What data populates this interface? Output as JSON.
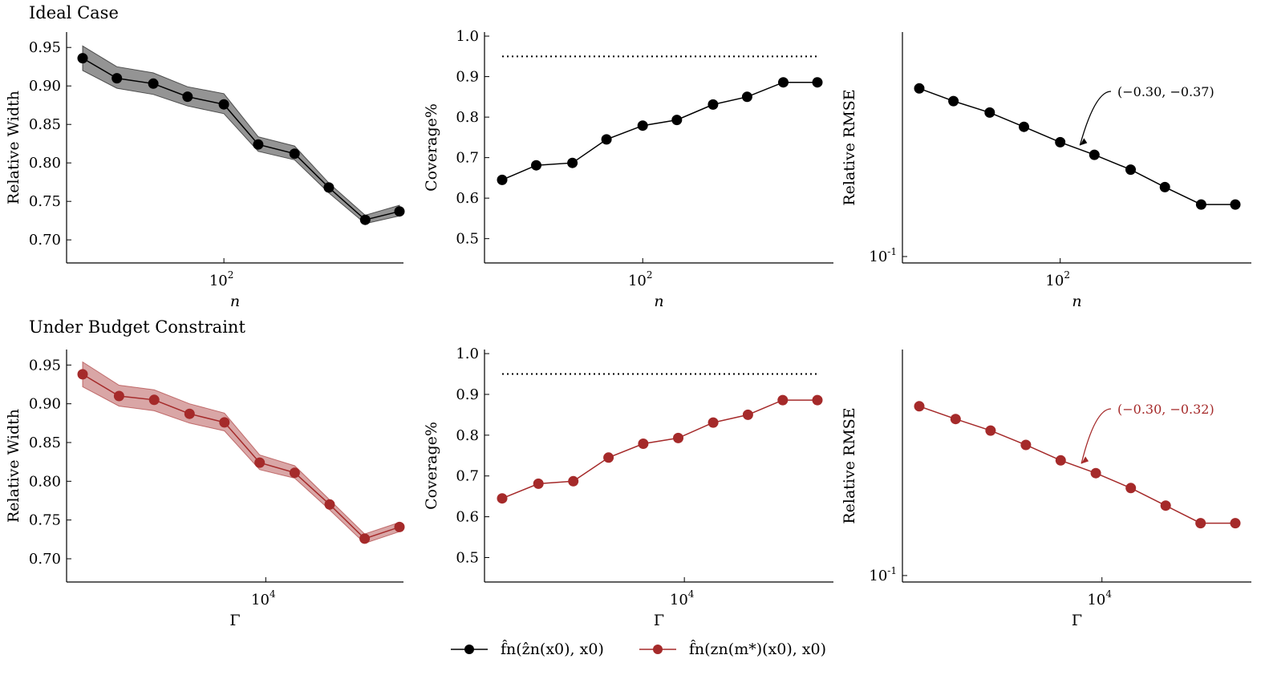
{
  "rows": [
    {
      "title": "Ideal Case",
      "xlabel": "n",
      "x_major_tick": "10",
      "x_major_exp": "2"
    },
    {
      "title": "Under Budget Constraint",
      "xlabel": "Γ",
      "x_major_tick": "10",
      "x_major_exp": "4"
    }
  ],
  "legend": [
    {
      "name": "f̂n(ẑn(x0), x0)",
      "color": "#000000"
    },
    {
      "name": "f̂n(zn(m*)(x0), x0)",
      "color": "#a52a2a"
    }
  ],
  "chart_data": [
    {
      "type": "line",
      "row": 0,
      "col": 0,
      "color": "#000000",
      "ylabel": "Relative Width",
      "xscale": "log",
      "x": [
        25,
        35,
        50,
        70,
        100,
        140,
        200,
        280,
        400,
        560
      ],
      "values": [
        0.936,
        0.91,
        0.903,
        0.886,
        0.876,
        0.824,
        0.812,
        0.768,
        0.726,
        0.737
      ],
      "band_upper": [
        0.952,
        0.925,
        0.917,
        0.899,
        0.89,
        0.834,
        0.822,
        0.774,
        0.732,
        0.745
      ],
      "band_lower": [
        0.92,
        0.897,
        0.889,
        0.874,
        0.864,
        0.815,
        0.804,
        0.761,
        0.721,
        0.731
      ],
      "ylim": [
        0.67,
        0.97
      ],
      "yticks": [
        0.7,
        0.75,
        0.8,
        0.85,
        0.9,
        0.95
      ],
      "ytick_labels": [
        "0.70",
        "0.75",
        "0.80",
        "0.85",
        "0.90",
        "0.95"
      ]
    },
    {
      "type": "line",
      "row": 0,
      "col": 1,
      "color": "#000000",
      "ylabel": "Coverage%",
      "xscale": "log",
      "x": [
        25,
        35,
        50,
        70,
        100,
        140,
        200,
        280,
        400,
        560
      ],
      "values": [
        0.645,
        0.681,
        0.687,
        0.745,
        0.779,
        0.793,
        0.831,
        0.85,
        0.886,
        0.886
      ],
      "reference_line": 0.95,
      "ylim": [
        0.44,
        1.01
      ],
      "yticks": [
        0.5,
        0.6,
        0.7,
        0.8,
        0.9,
        1.0
      ],
      "ytick_labels": [
        "0.5",
        "0.6",
        "0.7",
        "0.8",
        "0.9",
        "1.0"
      ]
    },
    {
      "type": "line",
      "row": 0,
      "col": 2,
      "color": "#000000",
      "ylabel": "Relative RMSE",
      "xscale": "log",
      "yscale": "log",
      "x": [
        25,
        35,
        50,
        70,
        100,
        140,
        200,
        280,
        400,
        560
      ],
      "values": [
        0.222,
        0.209,
        0.198,
        0.185,
        0.172,
        0.162,
        0.151,
        0.139,
        0.128,
        0.128
      ],
      "ylim": [
        0.097,
        0.29
      ],
      "yticks": [
        0.1
      ],
      "ytick_labels": [
        "10"
      ],
      "ytick_exp": "-1",
      "annotation": "(−0.30, −0.37)"
    },
    {
      "type": "line",
      "row": 1,
      "col": 0,
      "color": "#a52a2a",
      "ylabel": "Relative Width",
      "xscale": "log",
      "x": [
        600,
        1050,
        1800,
        3100,
        5300,
        9100,
        15600,
        26700,
        45700,
        78000
      ],
      "values": [
        0.938,
        0.91,
        0.905,
        0.887,
        0.876,
        0.824,
        0.811,
        0.77,
        0.726,
        0.741
      ],
      "band_upper": [
        0.954,
        0.924,
        0.918,
        0.9,
        0.888,
        0.834,
        0.82,
        0.776,
        0.732,
        0.747
      ],
      "band_lower": [
        0.922,
        0.897,
        0.891,
        0.875,
        0.865,
        0.815,
        0.804,
        0.763,
        0.72,
        0.735
      ],
      "ylim": [
        0.67,
        0.97
      ],
      "yticks": [
        0.7,
        0.75,
        0.8,
        0.85,
        0.9,
        0.95
      ],
      "ytick_labels": [
        "0.70",
        "0.75",
        "0.80",
        "0.85",
        "0.90",
        "0.95"
      ]
    },
    {
      "type": "line",
      "row": 1,
      "col": 1,
      "color": "#a52a2a",
      "ylabel": "Coverage%",
      "xscale": "log",
      "x": [
        600,
        1050,
        1800,
        3100,
        5300,
        9100,
        15600,
        26700,
        45700,
        78000
      ],
      "values": [
        0.645,
        0.681,
        0.687,
        0.745,
        0.779,
        0.793,
        0.831,
        0.85,
        0.886,
        0.886
      ],
      "reference_line": 0.95,
      "ylim": [
        0.44,
        1.01
      ],
      "yticks": [
        0.5,
        0.6,
        0.7,
        0.8,
        0.9,
        1.0
      ],
      "ytick_labels": [
        "0.5",
        "0.6",
        "0.7",
        "0.8",
        "0.9",
        "1.0"
      ]
    },
    {
      "type": "line",
      "row": 1,
      "col": 2,
      "color": "#a52a2a",
      "ylabel": "Relative RMSE",
      "xscale": "log",
      "yscale": "log",
      "x": [
        600,
        1050,
        1800,
        3100,
        5300,
        9100,
        15600,
        26700,
        45700,
        78000
      ],
      "values": [
        0.222,
        0.209,
        0.198,
        0.185,
        0.172,
        0.162,
        0.151,
        0.139,
        0.128,
        0.128
      ],
      "ylim": [
        0.097,
        0.29
      ],
      "yticks": [
        0.1
      ],
      "ytick_labels": [
        "10"
      ],
      "ytick_exp": "-1",
      "annotation": "(−0.30, −0.32)"
    }
  ]
}
